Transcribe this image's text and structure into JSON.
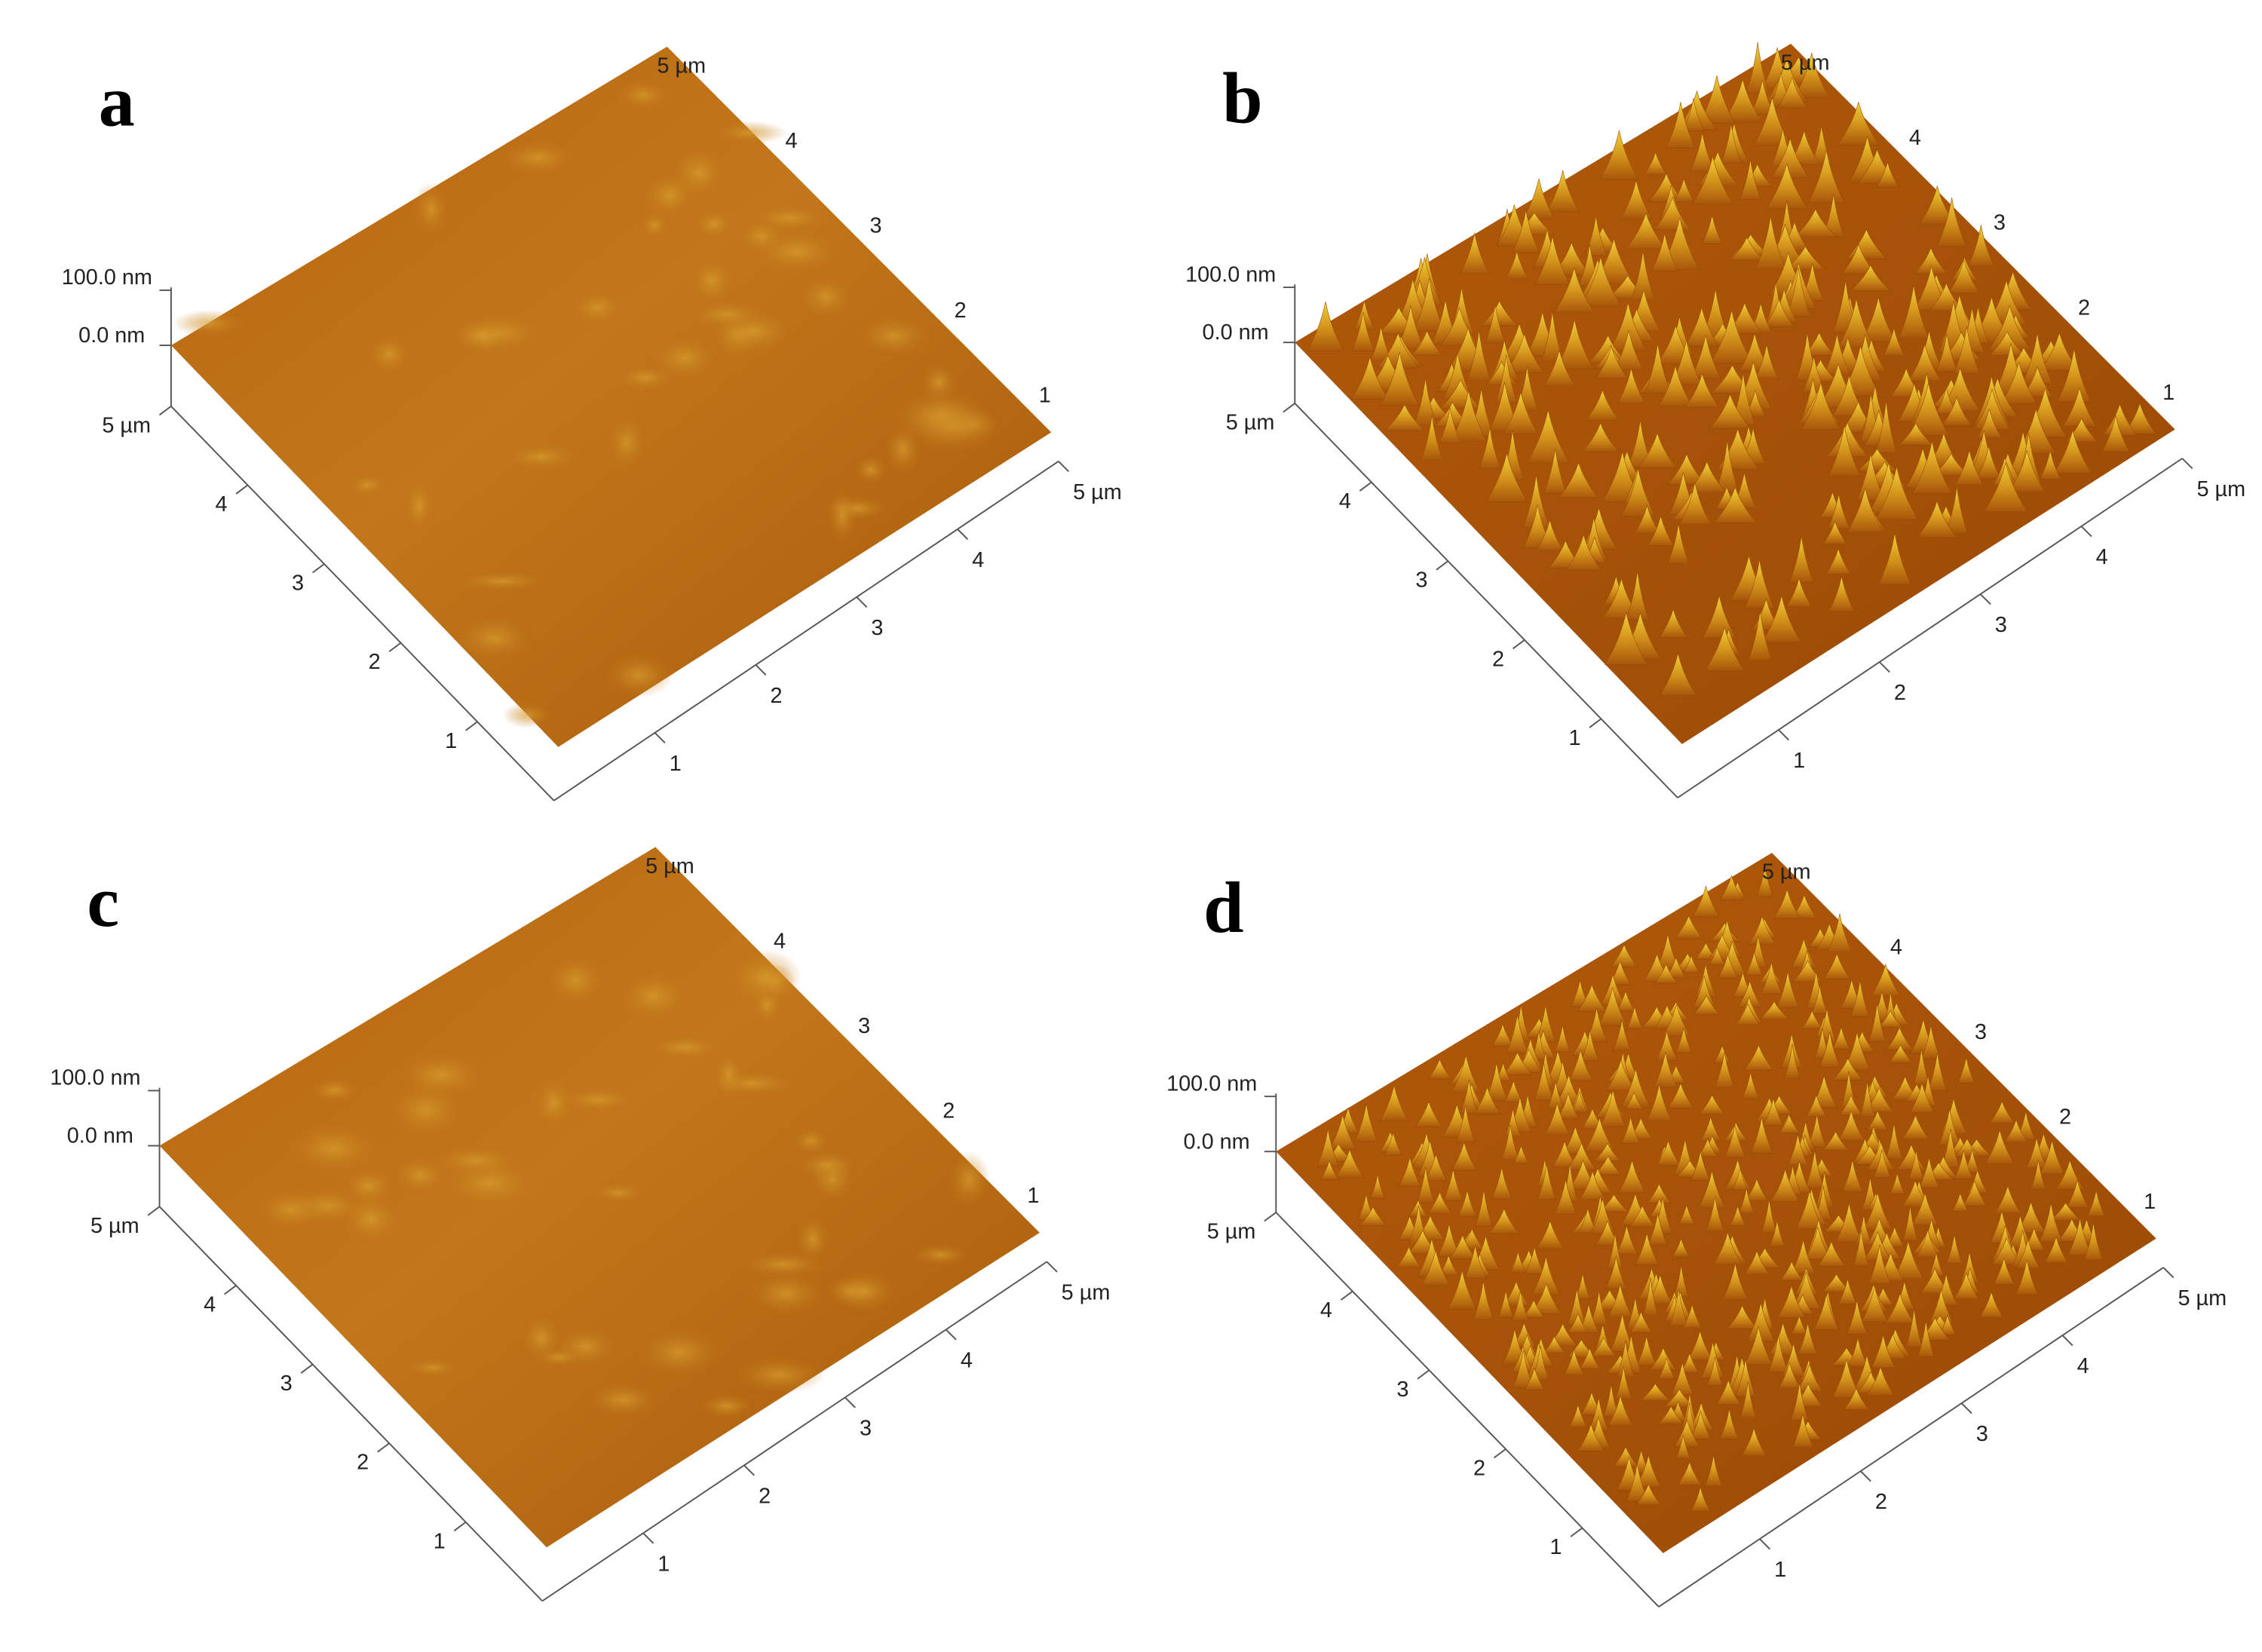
{
  "panels": [
    {
      "label": "a",
      "z_axis": {
        "top": "100.0 nm",
        "bottom": "0.0 nm"
      },
      "top_label": "5 µm",
      "back_axis": [
        "4",
        "3",
        "2",
        "1"
      ],
      "left_axis": [
        "5 µm",
        "4",
        "3",
        "2",
        "1"
      ],
      "right_axis": [
        "1",
        "2",
        "3",
        "4",
        "5 µm"
      ]
    },
    {
      "label": "b",
      "z_axis": {
        "top": "100.0 nm",
        "bottom": "0.0 nm"
      },
      "top_label": "5 µm",
      "back_axis": [
        "4",
        "3",
        "2",
        "1"
      ],
      "left_axis": [
        "5 µm",
        "4",
        "3",
        "2",
        "1"
      ],
      "right_axis": [
        "1",
        "2",
        "3",
        "4",
        "5 µm"
      ]
    },
    {
      "label": "c",
      "z_axis": {
        "top": "100.0 nm",
        "bottom": "0.0 nm"
      },
      "top_label": "5 µm",
      "back_axis": [
        "4",
        "3",
        "2",
        "1"
      ],
      "left_axis": [
        "5 µm",
        "4",
        "3",
        "2",
        "1"
      ],
      "right_axis": [
        "1",
        "2",
        "3",
        "4",
        "5 µm"
      ]
    },
    {
      "label": "d",
      "z_axis": {
        "top": "100.0 nm",
        "bottom": "0.0 nm"
      },
      "top_label": "5 µm",
      "back_axis": [
        "4",
        "3",
        "2",
        "1"
      ],
      "left_axis": [
        "5 µm",
        "4",
        "3",
        "2",
        "1"
      ],
      "right_axis": [
        "1",
        "2",
        "3",
        "4",
        "5 µm"
      ]
    }
  ]
}
